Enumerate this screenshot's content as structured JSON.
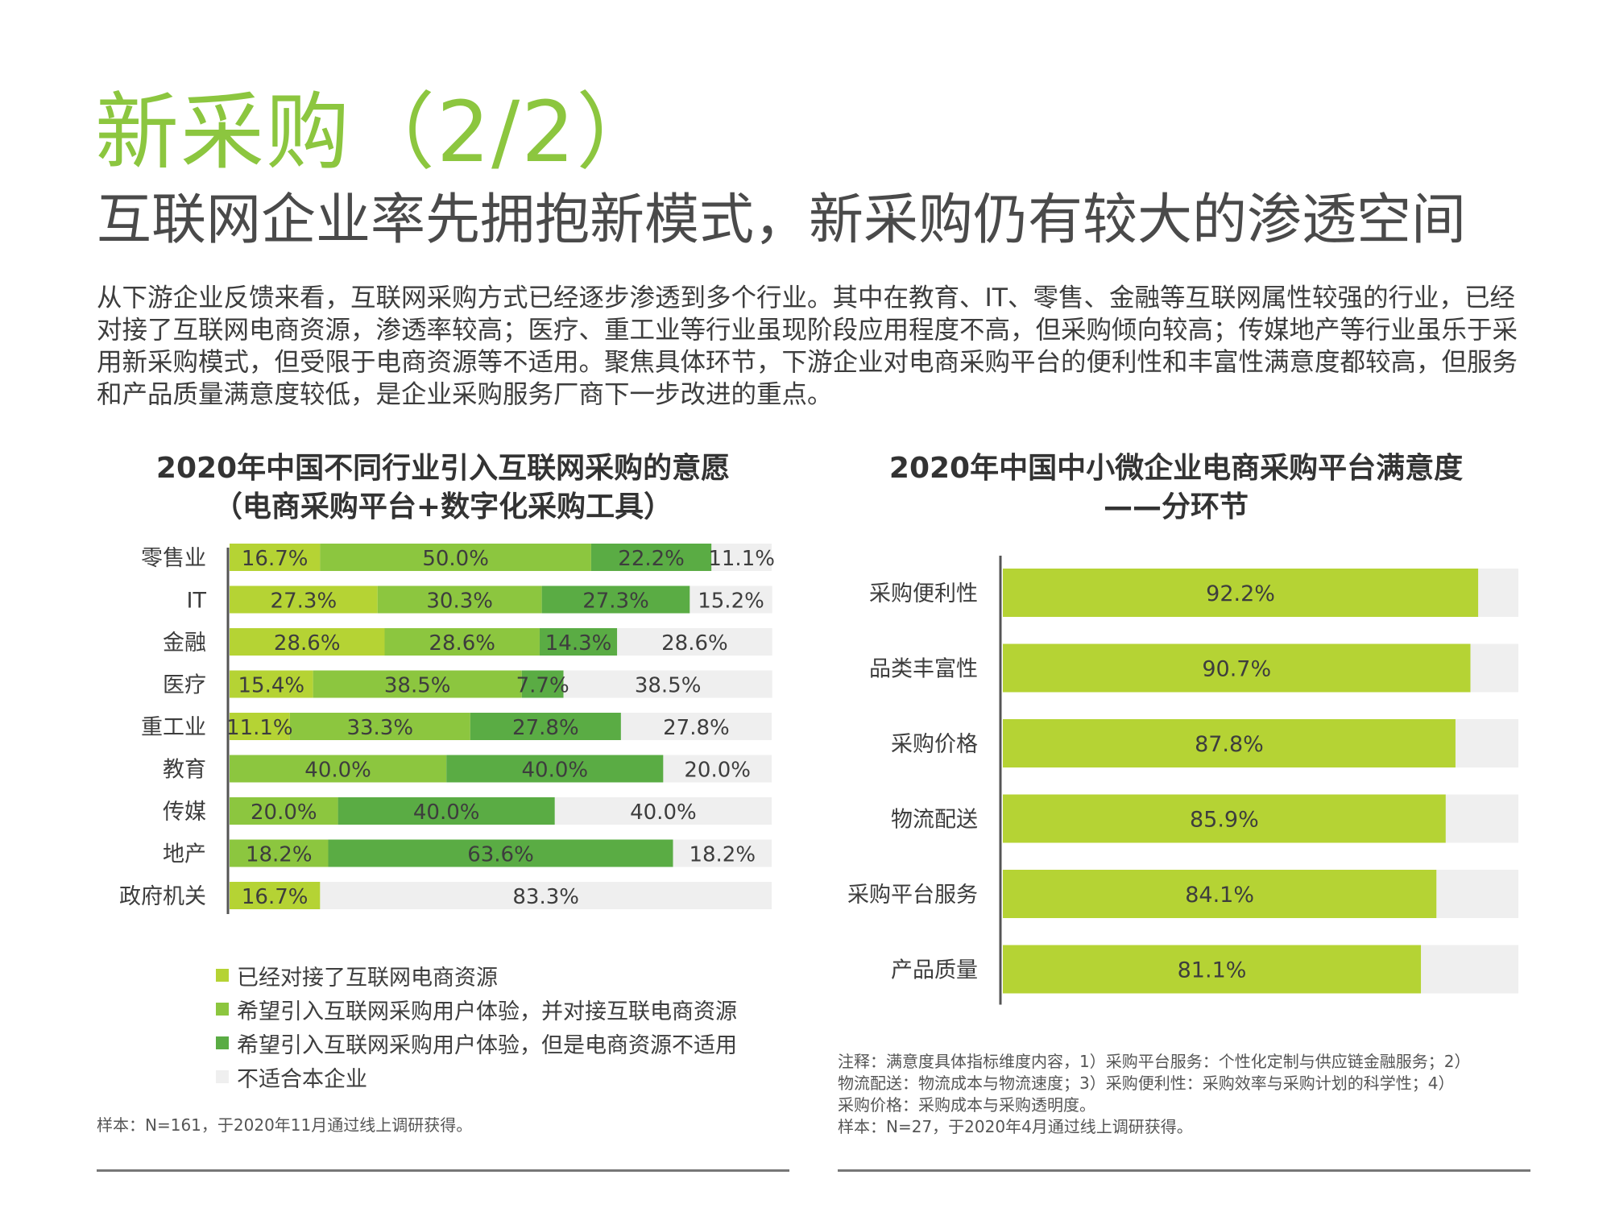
{
  "header": {
    "title": "新采购（2/2）",
    "subtitle": "互联网企业率先拥抱新模式，新采购仍有较大的渗透空间",
    "summary": "从下游企业反馈来看，互联网采购方式已经逐步渗透到多个行业。其中在教育、IT、零售、金融等互联网属性较强的行业，已经对接了互联网电商资源，渗透率较高；医疗、重工业等行业虽现阶段应用程度不高，但采购倾向较高；传媒地产等行业虽乐于采用新采购模式，但受限于电商资源等不适用。聚焦具体环节，下游企业对电商采购平台的便利性和丰富性满意度都较高，但服务和产品质量满意度较低，是企业采购服务厂商下一步改进的重点。"
  },
  "left_chart": {
    "title_line1": "2020年中国不同行业引入互联网采购的意愿",
    "title_line2": "（电商采购平台+数字化采购工具）",
    "sample_note": "样本：N=161，于2020年11月通过线上调研获得。"
  },
  "right_chart": {
    "title_line1": "2020年中国中小微企业电商采购平台满意度",
    "title_line2": "——分环节",
    "notes": [
      "注释：满意度具体指标维度内容，1）采购平台服务：个性化定制与供应链金融服务；2）",
      "物流配送：物流成本与物流速度；3）采购便利性：采购效率与采购计划的科学性；4）",
      "采购价格：采购成本与采购透明度。",
      "样本：N=27，于2020年4月通过线上调研获得。"
    ]
  },
  "chart_data": [
    {
      "type": "bar",
      "orientation": "horizontal",
      "stacked": true,
      "title": "2020年中国不同行业引入互联网采购的意愿（电商采购平台+数字化采购工具）",
      "categories": [
        "零售业",
        "IT",
        "金融",
        "医疗",
        "重工业",
        "教育",
        "传媒",
        "地产",
        "政府机关"
      ],
      "unit": "%",
      "series": [
        {
          "name": "已经对接了互联网电商资源",
          "color": "#b5d334",
          "values": [
            16.7,
            27.3,
            28.6,
            15.4,
            11.1,
            0,
            0,
            0,
            16.7
          ]
        },
        {
          "name": "希望引入互联网采购用户体验，并对接互联电商资源",
          "color": "#8cc63f",
          "values": [
            50.0,
            30.3,
            28.6,
            38.5,
            33.3,
            40.0,
            20.0,
            18.2,
            0
          ]
        },
        {
          "name": "希望引入互联网采购用户体验，但是电商资源不适用",
          "color": "#5aac44",
          "values": [
            22.2,
            27.3,
            14.3,
            7.7,
            27.8,
            40.0,
            40.0,
            63.6,
            0
          ]
        },
        {
          "name": "不适合本企业",
          "color": "#efefef",
          "values": [
            11.1,
            15.2,
            28.6,
            38.5,
            27.8,
            20.0,
            40.0,
            18.2,
            83.3
          ]
        }
      ],
      "labels": [
        [
          {
            "s": 0,
            "t": "16.7%"
          },
          {
            "s": 1,
            "t": "50.0%"
          },
          {
            "s": 2,
            "t": "22.2%"
          },
          {
            "s": 3,
            "t": "11.1%"
          }
        ],
        [
          {
            "s": 0,
            "t": "27.3%"
          },
          {
            "s": 1,
            "t": "30.3%"
          },
          {
            "s": 2,
            "t": "27.3%"
          },
          {
            "s": 3,
            "t": "15.2%"
          }
        ],
        [
          {
            "s": 0,
            "t": "28.6%"
          },
          {
            "s": 1,
            "t": "28.6%"
          },
          {
            "s": 2,
            "t": "14.3%"
          },
          {
            "s": 3,
            "t": "28.6%"
          }
        ],
        [
          {
            "s": 0,
            "t": "15.4%"
          },
          {
            "s": 1,
            "t": "38.5%"
          },
          {
            "s": 2,
            "t": "7.7%"
          },
          {
            "s": 3,
            "t": "38.5%"
          }
        ],
        [
          {
            "s": 0,
            "t": "11.1%"
          },
          {
            "s": 1,
            "t": "33.3%"
          },
          {
            "s": 2,
            "t": "27.8%"
          },
          {
            "s": 3,
            "t": "27.8%"
          }
        ],
        [
          {
            "s": 1,
            "t": "40.0%"
          },
          {
            "s": 2,
            "t": "40.0%"
          },
          {
            "s": 3,
            "t": "20.0%"
          }
        ],
        [
          {
            "s": 1,
            "t": "20.0%"
          },
          {
            "s": 2,
            "t": "40.0%"
          },
          {
            "s": 3,
            "t": "40.0%"
          }
        ],
        [
          {
            "s": 1,
            "t": "18.2%"
          },
          {
            "s": 2,
            "t": "63.6%"
          },
          {
            "s": 3,
            "t": "18.2%"
          }
        ],
        [
          {
            "s": 0,
            "t": "16.7%"
          },
          {
            "s": 3,
            "t": "83.3%"
          }
        ]
      ],
      "xlim": [
        0,
        100
      ],
      "legend_position": "bottom-left"
    },
    {
      "type": "bar",
      "orientation": "horizontal",
      "title": "2020年中国中小微企业电商采购平台满意度——分环节",
      "categories": [
        "采购便利性",
        "品类丰富性",
        "采购价格",
        "物流配送",
        "采购平台服务",
        "产品质量"
      ],
      "values": [
        92.2,
        90.7,
        87.8,
        85.9,
        84.1,
        81.1
      ],
      "value_labels": [
        "92.2%",
        "90.7%",
        "87.8%",
        "85.9%",
        "84.1%",
        "81.1%"
      ],
      "unit": "%",
      "bar_color": "#b5d334",
      "track_color": "#efefef",
      "xlim": [
        0,
        100
      ]
    }
  ]
}
